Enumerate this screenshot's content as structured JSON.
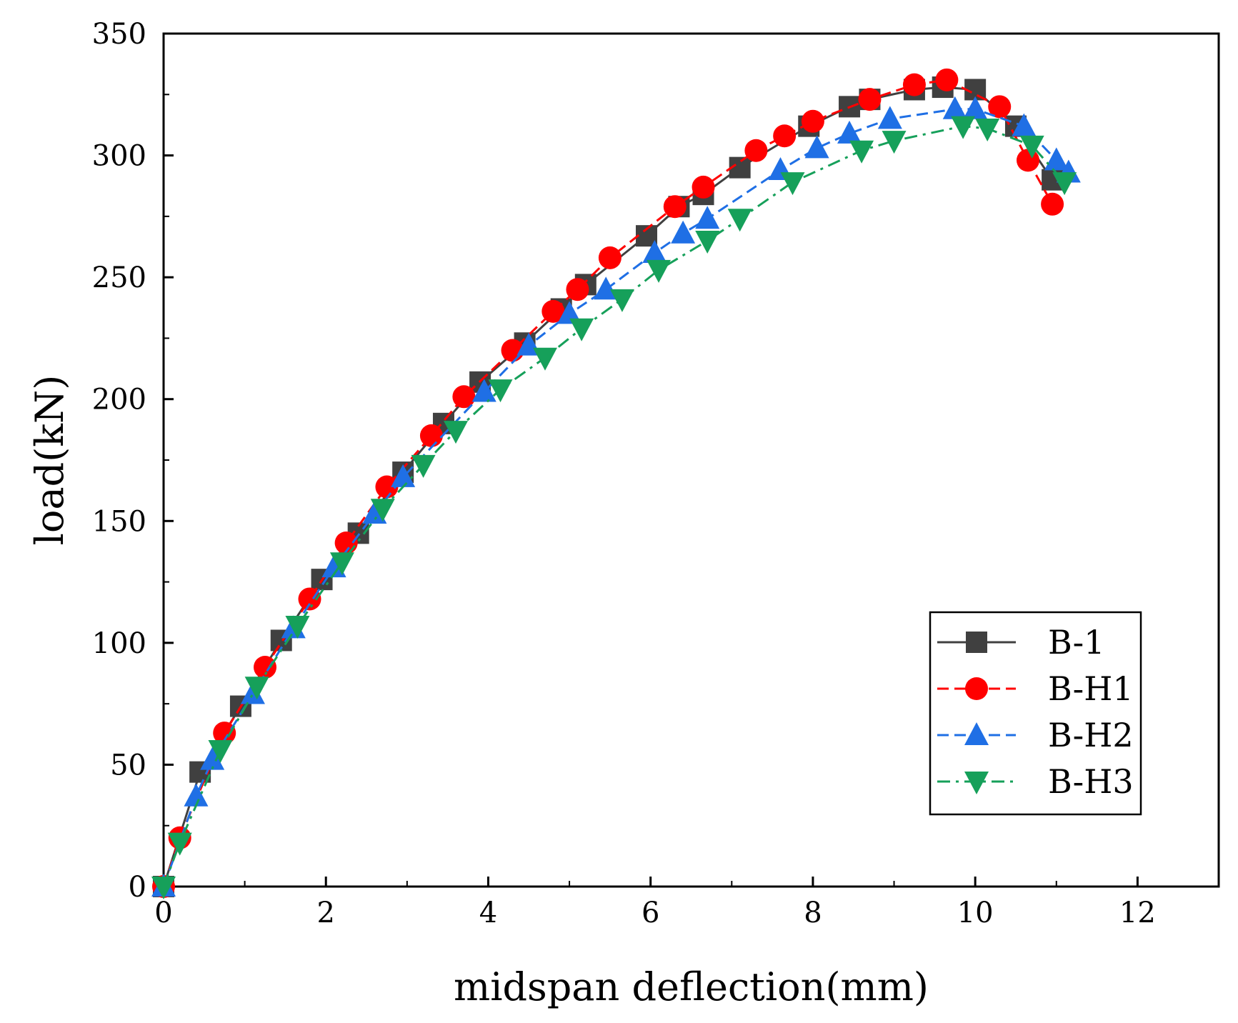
{
  "chart_data": {
    "type": "line",
    "title": "",
    "xlabel": "midspan deflection(mm)",
    "ylabel": "load(kN)",
    "xlim": [
      0,
      13
    ],
    "ylim": [
      0,
      350
    ],
    "x_ticks": [
      0,
      2,
      4,
      6,
      8,
      10,
      12
    ],
    "y_ticks": [
      0,
      50,
      100,
      150,
      200,
      250,
      300,
      350
    ],
    "x_tick_labels": [
      "0",
      "2",
      "4",
      "6",
      "8",
      "10",
      "12"
    ],
    "y_tick_labels": [
      "0",
      "50",
      "100",
      "150",
      "200",
      "250",
      "300",
      "350"
    ],
    "grid": false,
    "legend_position": "bottom-right",
    "series": [
      {
        "name": "B-1",
        "color": "#404040",
        "marker": "square",
        "line_style": "solid",
        "x": [
          0,
          0.45,
          0.95,
          1.45,
          1.95,
          2.4,
          2.95,
          3.45,
          3.9,
          4.45,
          4.9,
          5.2,
          5.95,
          6.35,
          6.65,
          7.1,
          7.95,
          8.45,
          8.7,
          9.25,
          9.6,
          10.0,
          10.5,
          10.95
        ],
        "y": [
          0,
          47,
          74,
          101,
          126,
          145,
          170,
          190,
          207,
          223,
          237,
          247,
          267,
          279,
          284,
          295,
          312,
          320,
          323,
          327,
          328,
          327,
          312,
          290
        ]
      },
      {
        "name": "B-H1",
        "color": "#ff0000",
        "marker": "circle",
        "line_style": "dash",
        "x": [
          0,
          0.2,
          0.75,
          1.25,
          1.8,
          2.25,
          2.75,
          3.3,
          3.7,
          4.3,
          4.8,
          5.1,
          5.5,
          6.3,
          6.65,
          7.3,
          7.65,
          8.0,
          8.7,
          9.25,
          9.65,
          10.3,
          10.65,
          10.95
        ],
        "y": [
          0,
          20,
          63,
          90,
          118,
          141,
          164,
          185,
          201,
          220,
          236,
          245,
          258,
          279,
          287,
          302,
          308,
          314,
          323,
          329,
          331,
          320,
          298,
          280
        ]
      },
      {
        "name": "B-H2",
        "color": "#1f6fe5",
        "marker": "triangle-up",
        "line_style": "dash",
        "x": [
          0,
          0.4,
          0.6,
          1.1,
          1.6,
          2.1,
          2.6,
          2.95,
          3.95,
          4.5,
          5.0,
          5.45,
          6.05,
          6.4,
          6.7,
          7.6,
          8.05,
          8.45,
          8.95,
          9.75,
          10.0,
          10.6,
          11.0,
          11.15
        ],
        "y": [
          0,
          37,
          52,
          79,
          106,
          131,
          153,
          168,
          203,
          222,
          235,
          245,
          260,
          268,
          274,
          294,
          303,
          309,
          315,
          319,
          319,
          312,
          298,
          293
        ]
      },
      {
        "name": "B-H3",
        "color": "#16a05a",
        "marker": "triangle-down",
        "line_style": "dashdot",
        "x": [
          0,
          0.2,
          0.7,
          1.15,
          1.65,
          2.2,
          2.7,
          3.2,
          3.6,
          4.15,
          4.7,
          5.15,
          5.65,
          6.1,
          6.7,
          7.1,
          7.75,
          8.6,
          9.0,
          9.85,
          10.15,
          10.7,
          11.1
        ],
        "y": [
          0,
          18,
          56,
          82,
          107,
          133,
          155,
          173,
          187,
          204,
          217,
          229,
          241,
          253,
          265,
          274,
          289,
          302,
          306,
          312,
          311,
          304,
          289
        ]
      }
    ]
  }
}
